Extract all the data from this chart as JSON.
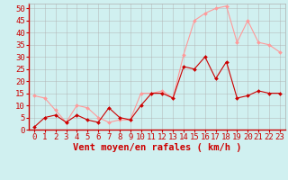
{
  "x": [
    0,
    1,
    2,
    3,
    4,
    5,
    6,
    7,
    8,
    9,
    10,
    11,
    12,
    13,
    14,
    15,
    16,
    17,
    18,
    19,
    20,
    21,
    22,
    23
  ],
  "wind_avg": [
    1,
    5,
    6,
    3,
    6,
    4,
    3,
    9,
    5,
    4,
    10,
    15,
    15,
    13,
    26,
    25,
    30,
    21,
    28,
    13,
    14,
    16,
    15,
    15
  ],
  "wind_gust": [
    14,
    13,
    8,
    3,
    10,
    9,
    5,
    3,
    4,
    4,
    15,
    15,
    16,
    13,
    31,
    45,
    48,
    50,
    51,
    36,
    45,
    36,
    35,
    32
  ],
  "bg_color": "#d0f0f0",
  "grid_color": "#b0b0b0",
  "line_avg_color": "#cc0000",
  "line_gust_color": "#ff9999",
  "xlabel": "Vent moyen/en rafales ( km/h )",
  "xlabel_color": "#cc0000",
  "ylim": [
    0,
    52
  ],
  "yticks": [
    0,
    5,
    10,
    15,
    20,
    25,
    30,
    35,
    40,
    45,
    50
  ],
  "tick_fontsize": 6.5,
  "xlabel_fontsize": 7.5
}
